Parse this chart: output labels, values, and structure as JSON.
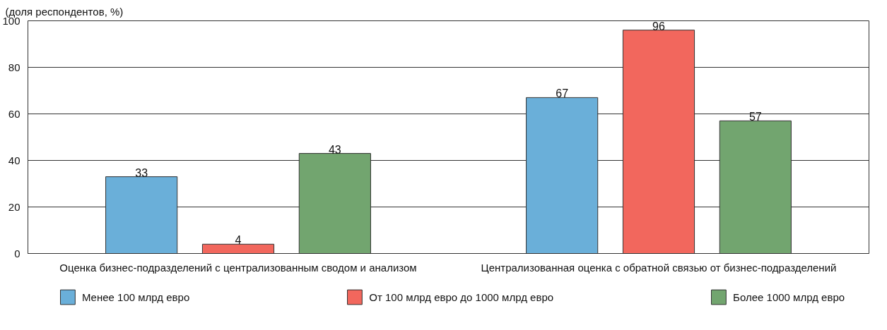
{
  "chart_data": {
    "type": "bar",
    "ylabel": "(доля респондентов, %)",
    "categories": [
      "Оценка бизнес-подразделений с централизованным сводом и анализом",
      "Централизованная оценка с обратной связью от бизнес-подразделений"
    ],
    "series": [
      {
        "name": "Менее 100 млрд евро",
        "color": "#6aafd9",
        "values": [
          33,
          67
        ]
      },
      {
        "name": "От 100 млрд евро до 1000 млрд евро",
        "color": "#f2675d",
        "values": [
          4,
          96
        ]
      },
      {
        "name": "Более 1000 млрд евро",
        "color": "#72a56f",
        "values": [
          43,
          57
        ]
      }
    ],
    "ylim": [
      0,
      100
    ],
    "yticks": [
      0,
      20,
      40,
      60,
      80,
      100
    ],
    "grid": "y",
    "data_labels": true,
    "legend": "bottom"
  }
}
